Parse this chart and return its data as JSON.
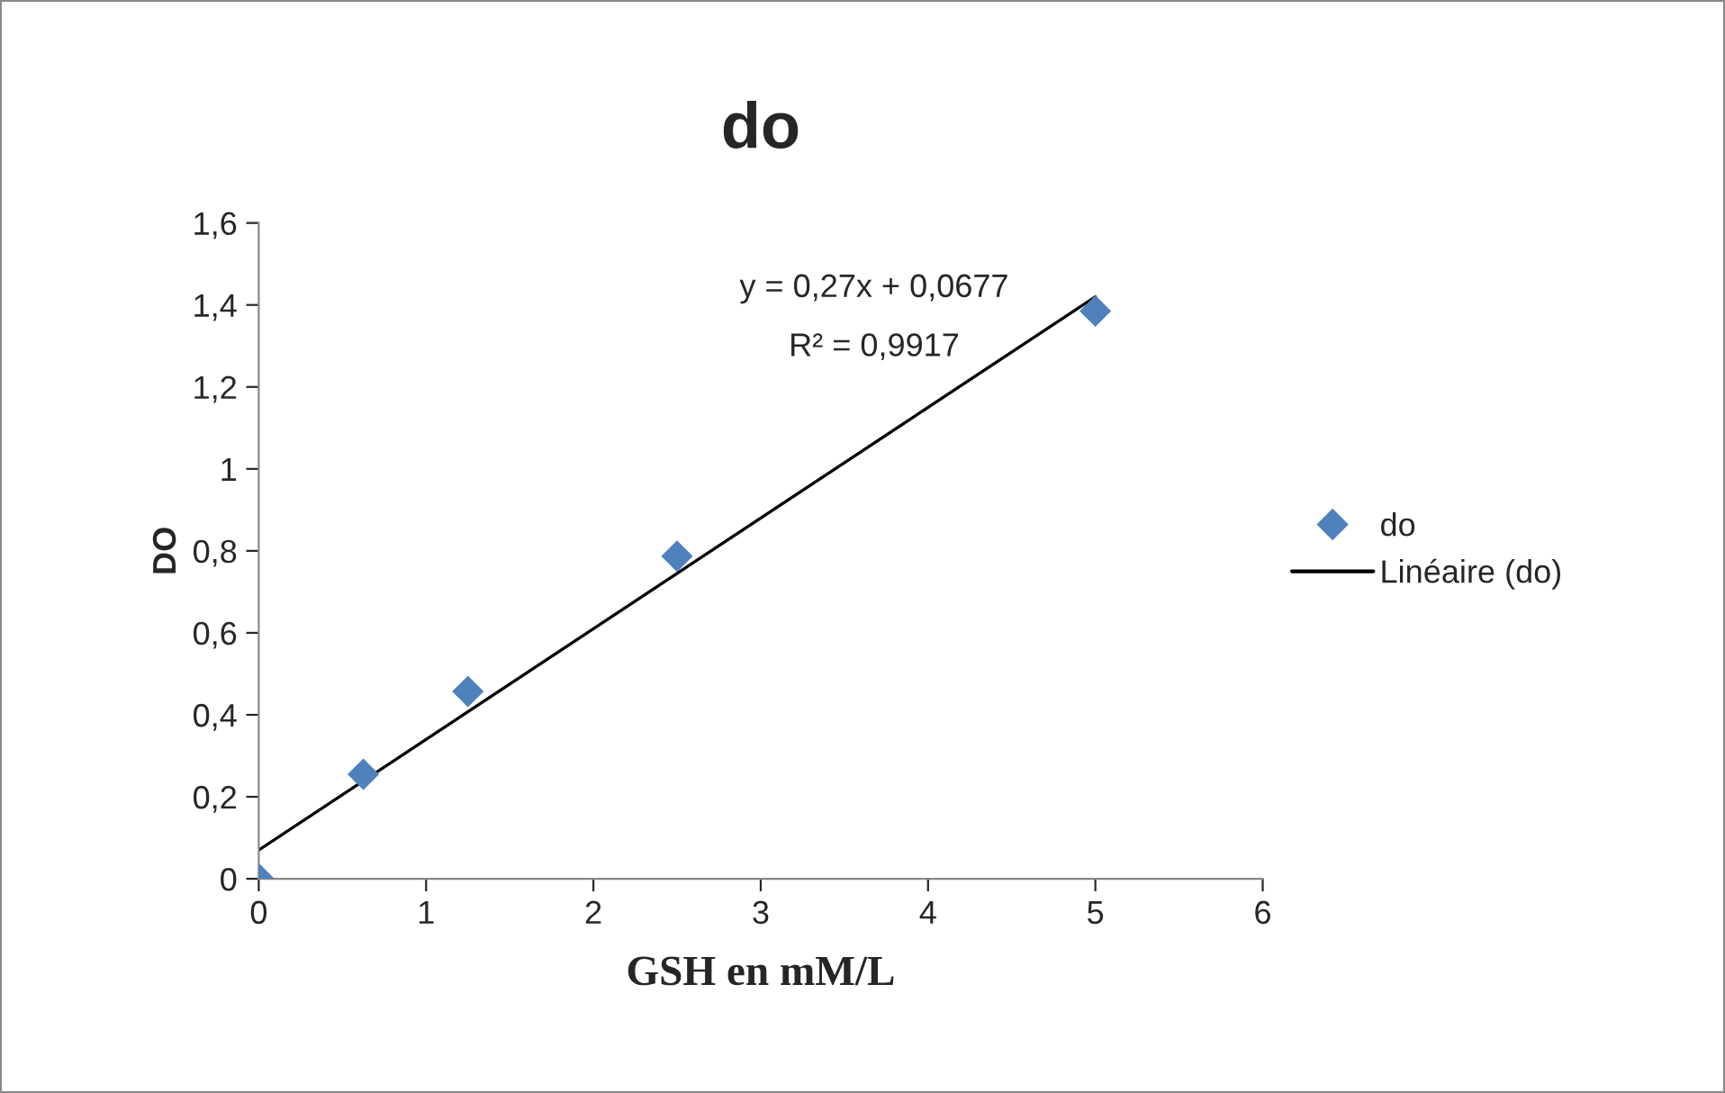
{
  "chart_data": {
    "type": "scatter",
    "title": "do",
    "xlabel": "GSH en mM/L",
    "ylabel": "DO",
    "x": [
      0,
      0.625,
      1.25,
      2.5,
      5
    ],
    "series": [
      {
        "name": "do",
        "color": "#4f81bd",
        "marker": "diamond",
        "values": [
          0,
          0.255,
          0.457,
          0.787,
          1.385
        ]
      },
      {
        "name": "Linéaire (do)",
        "color": "#000000",
        "type": "line",
        "marker": "none",
        "x": [
          0,
          5
        ],
        "values": [
          0.07,
          1.42
        ]
      }
    ],
    "xlim": [
      0,
      6
    ],
    "xticks": [
      0,
      1,
      2,
      3,
      4,
      5,
      6
    ],
    "ylim": [
      0,
      1.6
    ],
    "yticks": [
      0,
      {
        "value": 0.2,
        "label": "0,2"
      },
      {
        "value": 0.4,
        "label": "0,4"
      },
      {
        "value": 0.6,
        "label": "0,6"
      },
      {
        "value": 0.8,
        "label": "0,8"
      },
      1,
      {
        "value": 1.2,
        "label": "1,2"
      },
      {
        "value": 1.4,
        "label": "1,4"
      },
      {
        "value": 1.6,
        "label": "1,6"
      }
    ],
    "annotations": [
      "y = 0,27x + 0,0677",
      "R² = 0,9917"
    ],
    "grid": false,
    "legend": "right"
  }
}
